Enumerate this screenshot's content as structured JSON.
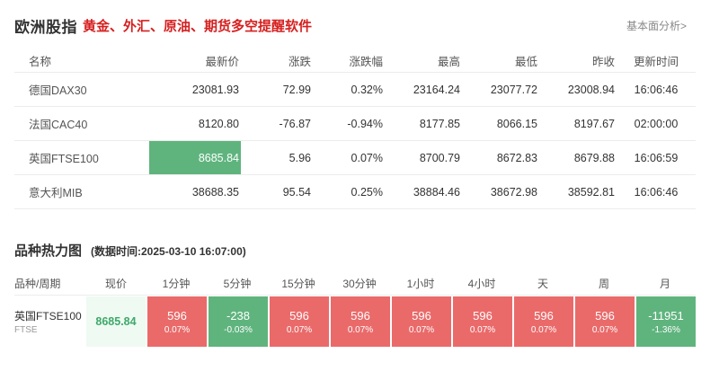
{
  "header": {
    "title": "欧洲股指",
    "slogan": "黄金、外汇、原油、期货多空提醒软件",
    "fundamental_link": "基本面分析>"
  },
  "index_table": {
    "columns": [
      "名称",
      "最新价",
      "涨跌",
      "涨跌幅",
      "最高",
      "最低",
      "昨收",
      "更新时间"
    ],
    "rows": [
      {
        "name": "德国DAX30",
        "last": "23081.93",
        "change": "72.99",
        "pct": "0.32%",
        "high": "23164.24",
        "low": "23077.72",
        "prev": "23008.94",
        "time": "16:06:46",
        "dir": "up"
      },
      {
        "name": "法国CAC40",
        "last": "8120.80",
        "change": "-76.87",
        "pct": "-0.94%",
        "high": "8177.85",
        "low": "8066.15",
        "prev": "8197.67",
        "time": "02:00:00",
        "dir": "down"
      },
      {
        "name": "英国FTSE100",
        "last": "8685.84",
        "change": "5.96",
        "pct": "0.07%",
        "high": "8700.79",
        "low": "8672.83",
        "prev": "8679.88",
        "time": "16:06:59",
        "dir": "up"
      },
      {
        "name": "意大利MIB",
        "last": "38688.35",
        "change": "95.54",
        "pct": "0.25%",
        "high": "38884.46",
        "low": "38672.98",
        "prev": "38592.81",
        "time": "16:06:46",
        "dir": "up"
      }
    ]
  },
  "heatmap": {
    "title": "品种热力图",
    "data_time": "(数据时间:2025-03-10 16:07:00)",
    "columns": [
      "品种/周期",
      "现价",
      "1分钟",
      "5分钟",
      "15分钟",
      "30分钟",
      "1小时",
      "4小时",
      "天",
      "周",
      "月"
    ],
    "row": {
      "name": "英国FTSE100",
      "code": "FTSE",
      "price": "8685.84",
      "cells": [
        {
          "value": "596",
          "pct": "0.07%",
          "dir": "red"
        },
        {
          "value": "-238",
          "pct": "-0.03%",
          "dir": "green"
        },
        {
          "value": "596",
          "pct": "0.07%",
          "dir": "red"
        },
        {
          "value": "596",
          "pct": "0.07%",
          "dir": "red"
        },
        {
          "value": "596",
          "pct": "0.07%",
          "dir": "red"
        },
        {
          "value": "596",
          "pct": "0.07%",
          "dir": "red"
        },
        {
          "value": "596",
          "pct": "0.07%",
          "dir": "red"
        },
        {
          "value": "596",
          "pct": "0.07%",
          "dir": "red"
        },
        {
          "value": "-11951",
          "pct": "-1.36%",
          "dir": "green"
        }
      ]
    }
  },
  "colors": {
    "up": "#e05252",
    "down": "#3fa96a",
    "heat_red": "#ea6a6a",
    "heat_green": "#5fb47e",
    "slogan": "#d61f1f"
  }
}
